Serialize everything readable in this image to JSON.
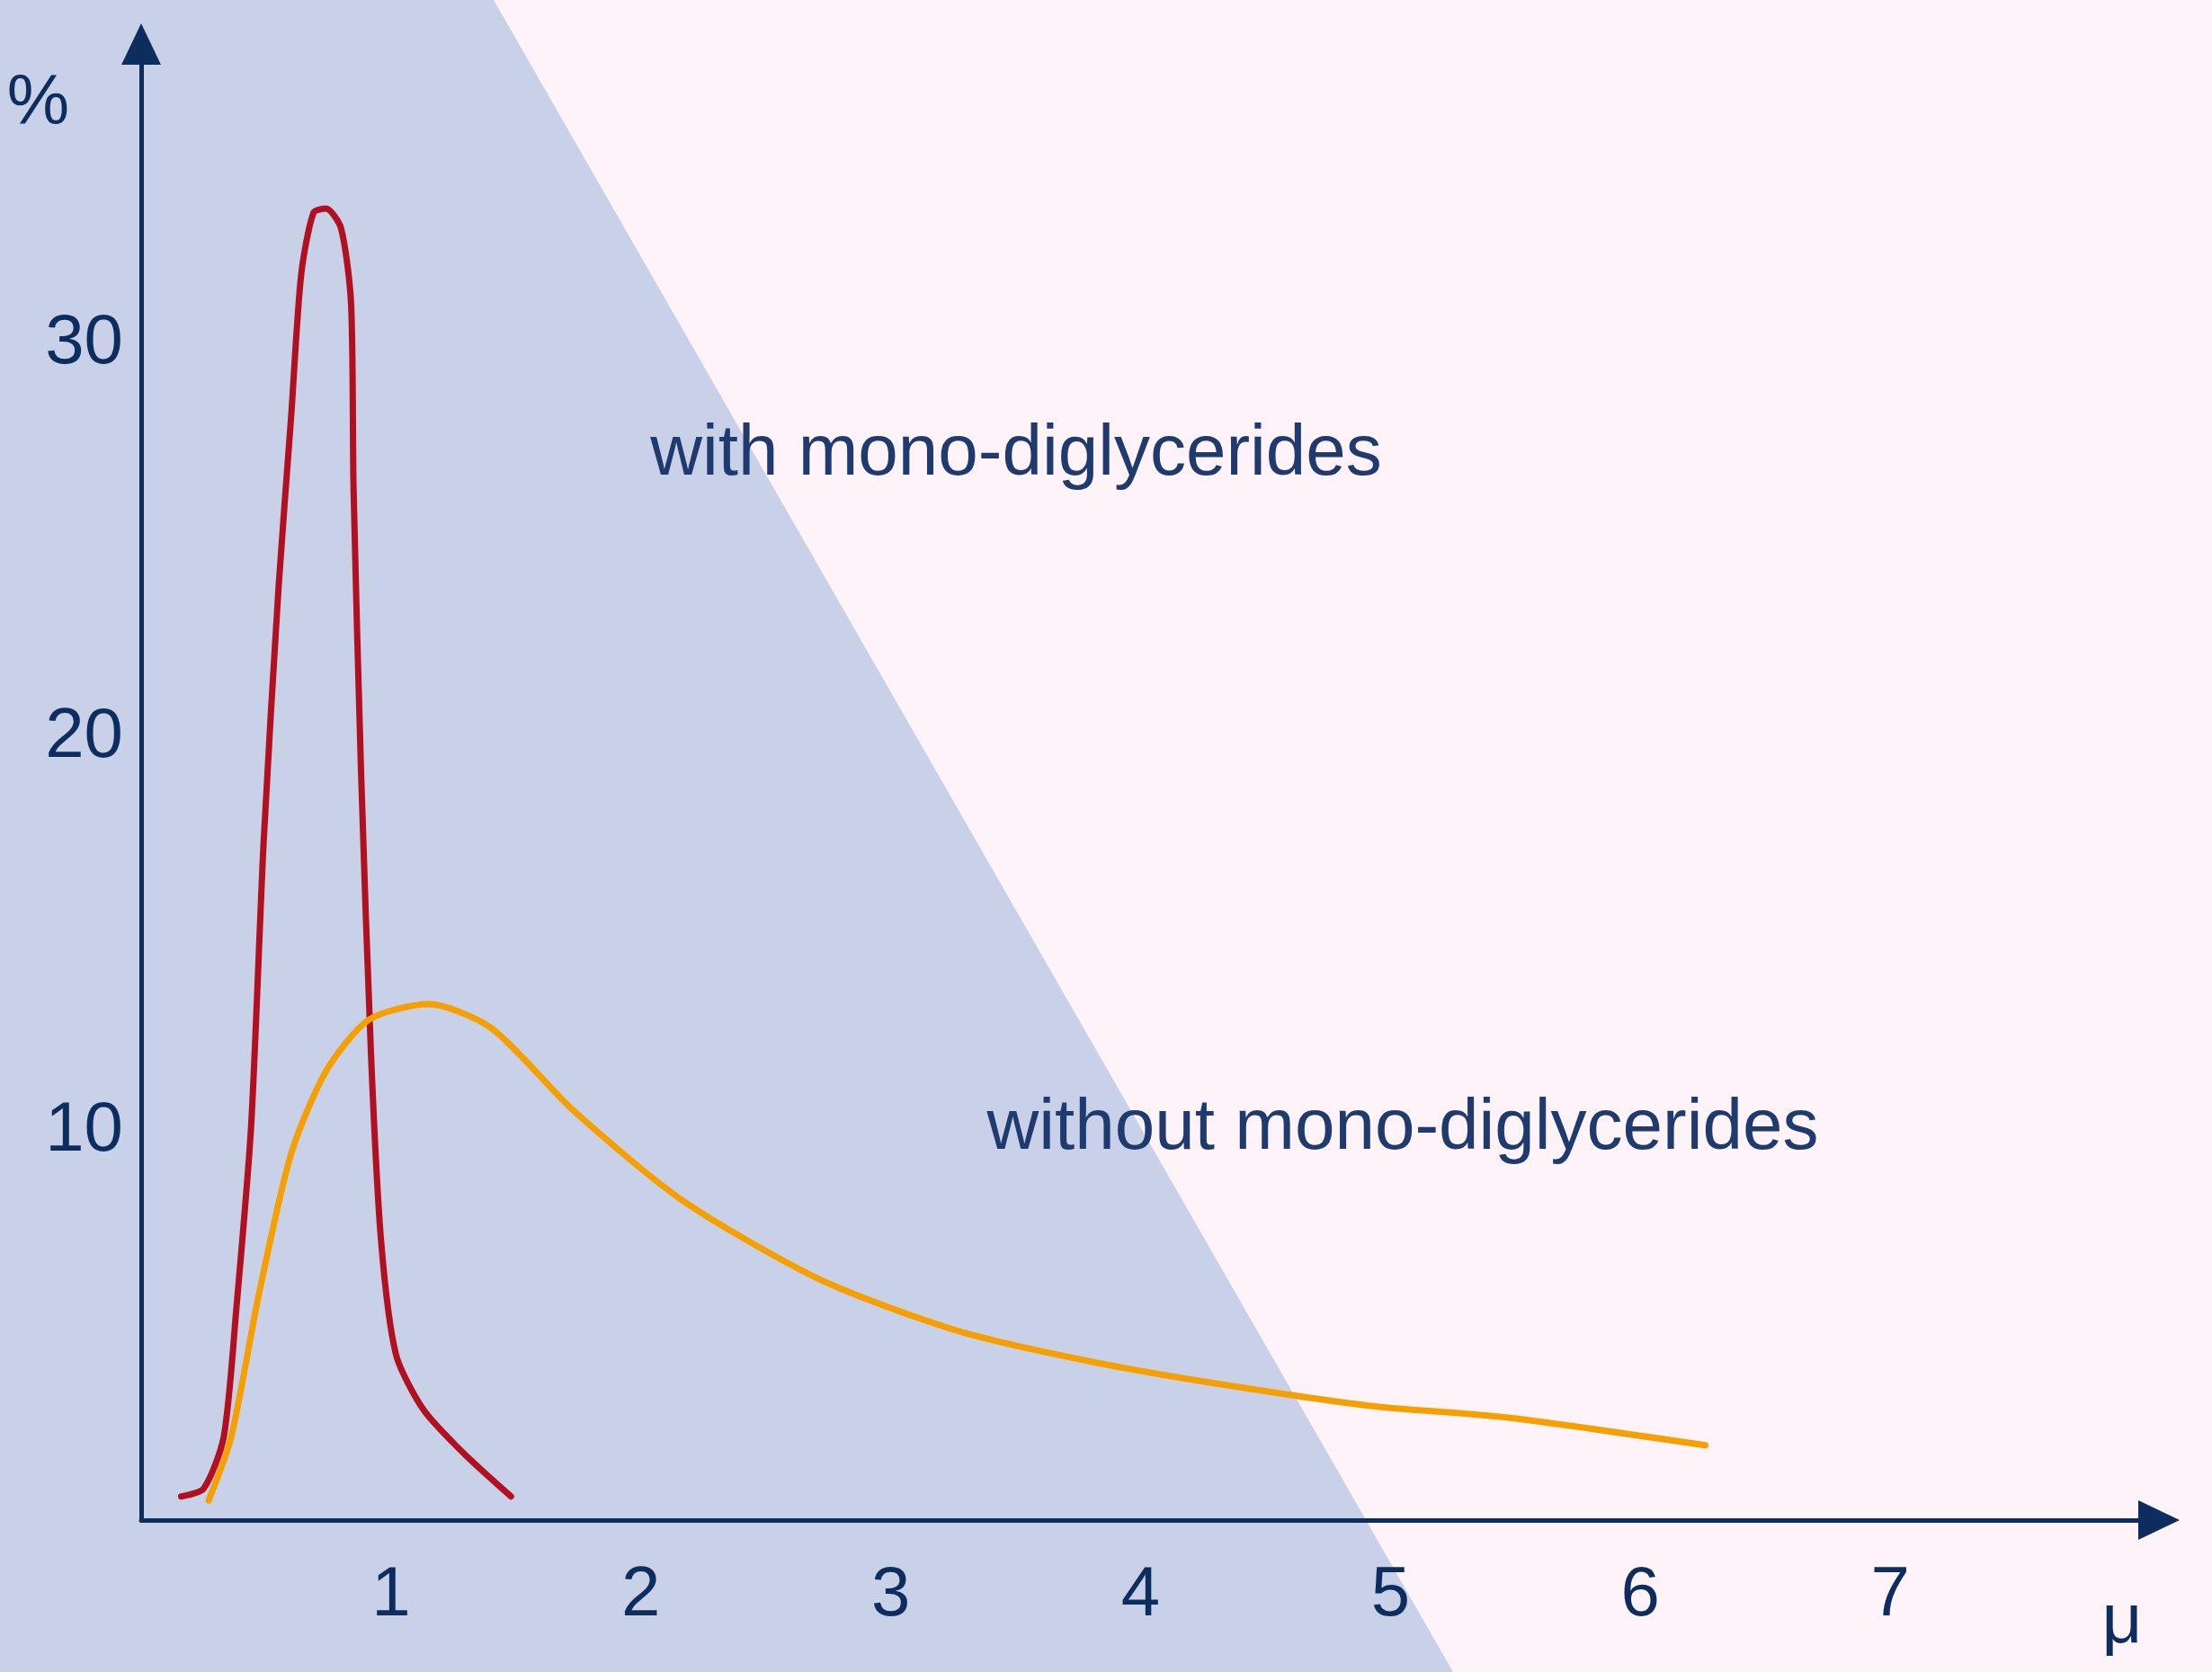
{
  "chart_data": {
    "type": "line",
    "xlabel": "μ",
    "ylabel": "%",
    "xlim": [
      0,
      8
    ],
    "ylim": [
      0,
      37
    ],
    "xticks": [
      1,
      2,
      3,
      4,
      5,
      6,
      7
    ],
    "yticks": [
      10,
      20,
      30
    ],
    "grid": false,
    "marker": "none",
    "line_style": "solid",
    "series": [
      {
        "color": "#b01020",
        "x": [
          0.16,
          0.25,
          0.33,
          0.38,
          0.44,
          0.49,
          0.55,
          0.6,
          0.64,
          0.69,
          0.74,
          0.8,
          0.84,
          0.85,
          0.88,
          0.92,
          0.96,
          1.02,
          1.13,
          1.29,
          1.48
        ],
        "values": [
          0.6,
          0.8,
          2.1,
          5.3,
          10,
          17.2,
          23.7,
          28,
          31.6,
          33.2,
          33.3,
          32.8,
          30.9,
          26.2,
          19,
          11.8,
          7.1,
          4.2,
          2.8,
          1.7,
          0.6
        ]
      },
      {
        "color": "#f5a000",
        "x": [
          0.27,
          0.36,
          0.47,
          0.6,
          0.74,
          0.91,
          1.15,
          1.4,
          1.73,
          2.17,
          2.72,
          3.27,
          3.82,
          4.37,
          4.92,
          5.47,
          6.26
        ],
        "values": [
          0.5,
          2.1,
          5.7,
          9.3,
          11.4,
          12.7,
          13.1,
          12.5,
          10.4,
          8.1,
          6.1,
          4.8,
          4,
          3.4,
          2.9,
          2.6,
          1.9
        ]
      }
    ],
    "annotations": [
      "with mono-diglycerides",
      "without mono-diglycerides"
    ]
  }
}
